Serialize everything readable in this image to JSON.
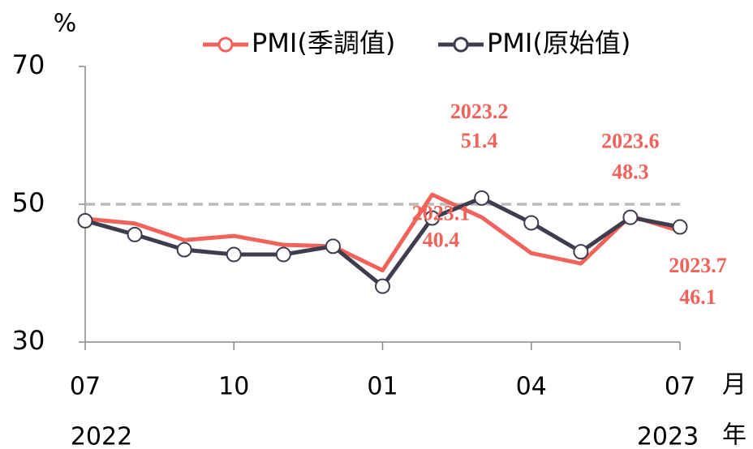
{
  "chart_data": {
    "type": "line",
    "y_label": "%",
    "categories": [
      "07",
      null,
      null,
      "10",
      null,
      null,
      "01",
      null,
      null,
      "04",
      null,
      null,
      "07"
    ],
    "year_labels": [
      "2022",
      null,
      null,
      null,
      null,
      null,
      null,
      null,
      null,
      null,
      null,
      null,
      "2023"
    ],
    "x_unit": "月",
    "year_unit": "年",
    "series": [
      {
        "name": "PMI(季調值)",
        "color": "#f0625a",
        "markers": false,
        "values": [
          47.9,
          47.2,
          44.8,
          45.4,
          44.1,
          43.9,
          40.4,
          51.4,
          48.1,
          42.9,
          41.4,
          48.3,
          46.1
        ],
        "annotations": [
          null,
          null,
          null,
          null,
          null,
          null,
          "2023.1",
          "2023.2",
          null,
          null,
          null,
          "2023.6",
          "2023.7"
        ]
      },
      {
        "name": "PMI(原始值)",
        "color": "#3d3d4d",
        "markers": true,
        "values": [
          47.6,
          45.6,
          43.4,
          42.7,
          42.7,
          43.9,
          38.1,
          48.0,
          50.9,
          47.3,
          43.1,
          48.1,
          46.7
        ]
      }
    ],
    "reference_line": 50,
    "ylim": [
      30,
      70
    ],
    "yticks": [
      30,
      50,
      70
    ]
  }
}
